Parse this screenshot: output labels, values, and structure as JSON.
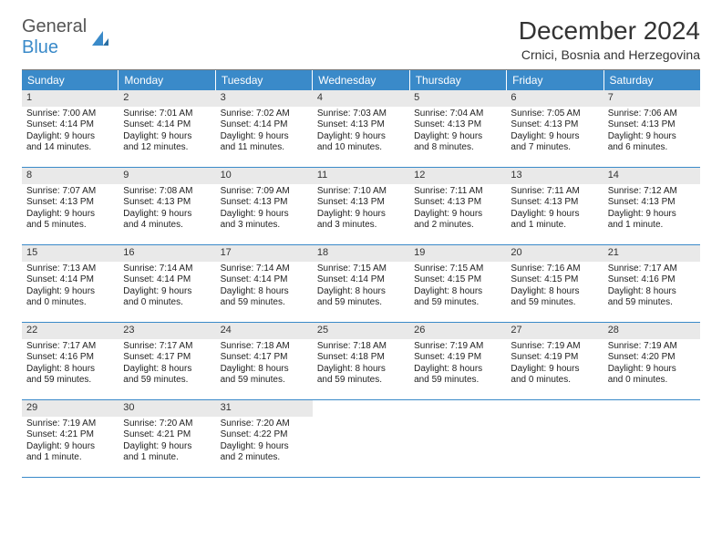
{
  "brand": {
    "word1": "General",
    "word2": "Blue"
  },
  "title": "December 2024",
  "location": "Crnici, Bosnia and Herzegovina",
  "colors": {
    "header_bg": "#3a8ac9",
    "header_text": "#ffffff",
    "daynum_bg": "#e9e9e9",
    "row_border": "#3a8ac9",
    "text": "#222222"
  },
  "day_labels": [
    "Sunday",
    "Monday",
    "Tuesday",
    "Wednesday",
    "Thursday",
    "Friday",
    "Saturday"
  ],
  "weeks": [
    [
      {
        "n": "1",
        "sr": "Sunrise: 7:00 AM",
        "ss": "Sunset: 4:14 PM",
        "d1": "Daylight: 9 hours",
        "d2": "and 14 minutes."
      },
      {
        "n": "2",
        "sr": "Sunrise: 7:01 AM",
        "ss": "Sunset: 4:14 PM",
        "d1": "Daylight: 9 hours",
        "d2": "and 12 minutes."
      },
      {
        "n": "3",
        "sr": "Sunrise: 7:02 AM",
        "ss": "Sunset: 4:14 PM",
        "d1": "Daylight: 9 hours",
        "d2": "and 11 minutes."
      },
      {
        "n": "4",
        "sr": "Sunrise: 7:03 AM",
        "ss": "Sunset: 4:13 PM",
        "d1": "Daylight: 9 hours",
        "d2": "and 10 minutes."
      },
      {
        "n": "5",
        "sr": "Sunrise: 7:04 AM",
        "ss": "Sunset: 4:13 PM",
        "d1": "Daylight: 9 hours",
        "d2": "and 8 minutes."
      },
      {
        "n": "6",
        "sr": "Sunrise: 7:05 AM",
        "ss": "Sunset: 4:13 PM",
        "d1": "Daylight: 9 hours",
        "d2": "and 7 minutes."
      },
      {
        "n": "7",
        "sr": "Sunrise: 7:06 AM",
        "ss": "Sunset: 4:13 PM",
        "d1": "Daylight: 9 hours",
        "d2": "and 6 minutes."
      }
    ],
    [
      {
        "n": "8",
        "sr": "Sunrise: 7:07 AM",
        "ss": "Sunset: 4:13 PM",
        "d1": "Daylight: 9 hours",
        "d2": "and 5 minutes."
      },
      {
        "n": "9",
        "sr": "Sunrise: 7:08 AM",
        "ss": "Sunset: 4:13 PM",
        "d1": "Daylight: 9 hours",
        "d2": "and 4 minutes."
      },
      {
        "n": "10",
        "sr": "Sunrise: 7:09 AM",
        "ss": "Sunset: 4:13 PM",
        "d1": "Daylight: 9 hours",
        "d2": "and 3 minutes."
      },
      {
        "n": "11",
        "sr": "Sunrise: 7:10 AM",
        "ss": "Sunset: 4:13 PM",
        "d1": "Daylight: 9 hours",
        "d2": "and 3 minutes."
      },
      {
        "n": "12",
        "sr": "Sunrise: 7:11 AM",
        "ss": "Sunset: 4:13 PM",
        "d1": "Daylight: 9 hours",
        "d2": "and 2 minutes."
      },
      {
        "n": "13",
        "sr": "Sunrise: 7:11 AM",
        "ss": "Sunset: 4:13 PM",
        "d1": "Daylight: 9 hours",
        "d2": "and 1 minute."
      },
      {
        "n": "14",
        "sr": "Sunrise: 7:12 AM",
        "ss": "Sunset: 4:13 PM",
        "d1": "Daylight: 9 hours",
        "d2": "and 1 minute."
      }
    ],
    [
      {
        "n": "15",
        "sr": "Sunrise: 7:13 AM",
        "ss": "Sunset: 4:14 PM",
        "d1": "Daylight: 9 hours",
        "d2": "and 0 minutes."
      },
      {
        "n": "16",
        "sr": "Sunrise: 7:14 AM",
        "ss": "Sunset: 4:14 PM",
        "d1": "Daylight: 9 hours",
        "d2": "and 0 minutes."
      },
      {
        "n": "17",
        "sr": "Sunrise: 7:14 AM",
        "ss": "Sunset: 4:14 PM",
        "d1": "Daylight: 8 hours",
        "d2": "and 59 minutes."
      },
      {
        "n": "18",
        "sr": "Sunrise: 7:15 AM",
        "ss": "Sunset: 4:14 PM",
        "d1": "Daylight: 8 hours",
        "d2": "and 59 minutes."
      },
      {
        "n": "19",
        "sr": "Sunrise: 7:15 AM",
        "ss": "Sunset: 4:15 PM",
        "d1": "Daylight: 8 hours",
        "d2": "and 59 minutes."
      },
      {
        "n": "20",
        "sr": "Sunrise: 7:16 AM",
        "ss": "Sunset: 4:15 PM",
        "d1": "Daylight: 8 hours",
        "d2": "and 59 minutes."
      },
      {
        "n": "21",
        "sr": "Sunrise: 7:17 AM",
        "ss": "Sunset: 4:16 PM",
        "d1": "Daylight: 8 hours",
        "d2": "and 59 minutes."
      }
    ],
    [
      {
        "n": "22",
        "sr": "Sunrise: 7:17 AM",
        "ss": "Sunset: 4:16 PM",
        "d1": "Daylight: 8 hours",
        "d2": "and 59 minutes."
      },
      {
        "n": "23",
        "sr": "Sunrise: 7:17 AM",
        "ss": "Sunset: 4:17 PM",
        "d1": "Daylight: 8 hours",
        "d2": "and 59 minutes."
      },
      {
        "n": "24",
        "sr": "Sunrise: 7:18 AM",
        "ss": "Sunset: 4:17 PM",
        "d1": "Daylight: 8 hours",
        "d2": "and 59 minutes."
      },
      {
        "n": "25",
        "sr": "Sunrise: 7:18 AM",
        "ss": "Sunset: 4:18 PM",
        "d1": "Daylight: 8 hours",
        "d2": "and 59 minutes."
      },
      {
        "n": "26",
        "sr": "Sunrise: 7:19 AM",
        "ss": "Sunset: 4:19 PM",
        "d1": "Daylight: 8 hours",
        "d2": "and 59 minutes."
      },
      {
        "n": "27",
        "sr": "Sunrise: 7:19 AM",
        "ss": "Sunset: 4:19 PM",
        "d1": "Daylight: 9 hours",
        "d2": "and 0 minutes."
      },
      {
        "n": "28",
        "sr": "Sunrise: 7:19 AM",
        "ss": "Sunset: 4:20 PM",
        "d1": "Daylight: 9 hours",
        "d2": "and 0 minutes."
      }
    ],
    [
      {
        "n": "29",
        "sr": "Sunrise: 7:19 AM",
        "ss": "Sunset: 4:21 PM",
        "d1": "Daylight: 9 hours",
        "d2": "and 1 minute."
      },
      {
        "n": "30",
        "sr": "Sunrise: 7:20 AM",
        "ss": "Sunset: 4:21 PM",
        "d1": "Daylight: 9 hours",
        "d2": "and 1 minute."
      },
      {
        "n": "31",
        "sr": "Sunrise: 7:20 AM",
        "ss": "Sunset: 4:22 PM",
        "d1": "Daylight: 9 hours",
        "d2": "and 2 minutes."
      },
      {
        "empty": true
      },
      {
        "empty": true
      },
      {
        "empty": true
      },
      {
        "empty": true
      }
    ]
  ]
}
